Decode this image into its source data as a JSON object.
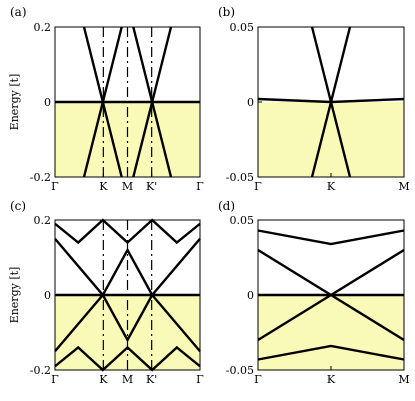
{
  "chart_data": [
    {
      "type": "line",
      "panel_label": "(a)",
      "ylabel": "Energy [t]",
      "ylim": [
        -0.2,
        0.2
      ],
      "xticks": [
        "Γ",
        "K",
        "M",
        "K'",
        "Γ"
      ],
      "yticks": [
        "0.2",
        "0",
        "-0.2"
      ],
      "series": [
        {
          "values": [
            [
              0,
              0.0
            ],
            [
              0.33,
              0.0
            ],
            [
              0.5,
              0.0
            ],
            [
              0.67,
              0.0
            ],
            [
              1,
              0.0
            ]
          ]
        },
        {
          "values": [
            [
              0.2,
              0.2
            ],
            [
              0.33,
              0.0
            ],
            [
              0.46,
              0.2
            ]
          ]
        },
        {
          "values": [
            [
              0.2,
              -0.2
            ],
            [
              0.33,
              0.0
            ],
            [
              0.46,
              -0.2
            ]
          ]
        },
        {
          "values": [
            [
              0.54,
              0.2
            ],
            [
              0.67,
              0.0
            ],
            [
              0.8,
              0.2
            ]
          ]
        },
        {
          "values": [
            [
              0.54,
              -0.2
            ],
            [
              0.67,
              0.0
            ],
            [
              0.8,
              -0.2
            ]
          ]
        }
      ],
      "fill": {
        "from": -0.2,
        "to": 0.0,
        "color": "#fafab8"
      },
      "dashed_lines_at": [
        "K",
        "M",
        "K'"
      ]
    },
    {
      "type": "line",
      "panel_label": "(b)",
      "ylim": [
        -0.05,
        0.05
      ],
      "xticks": [
        "Γ",
        "K",
        "M"
      ],
      "yticks": [
        "0.05",
        "0",
        "-0.05"
      ],
      "series": [
        {
          "values": [
            [
              0,
              0.002
            ],
            [
              0.5,
              0.0
            ],
            [
              1,
              0.002
            ]
          ]
        },
        {
          "values": [
            [
              0.37,
              0.05
            ],
            [
              0.5,
              0.0
            ],
            [
              0.63,
              -0.05
            ]
          ]
        },
        {
          "values": [
            [
              0.37,
              -0.05
            ],
            [
              0.5,
              0.0
            ],
            [
              0.63,
              0.05
            ]
          ]
        }
      ],
      "fill": {
        "from": -0.05,
        "to": 0.0,
        "color": "#fafab8"
      }
    },
    {
      "type": "line",
      "panel_label": "(c)",
      "ylabel": "Energy [t]",
      "ylim": [
        -0.2,
        0.2
      ],
      "xticks": [
        "Γ",
        "K",
        "M",
        "K'",
        "Γ"
      ],
      "yticks": [
        "0.2",
        "0",
        "-0.2"
      ],
      "series": [
        {
          "values": [
            [
              0,
              0.0
            ],
            [
              0.5,
              0.0
            ],
            [
              1,
              0.0
            ]
          ]
        },
        {
          "values": [
            [
              0,
              0.15
            ],
            [
              0.33,
              0.0
            ],
            [
              0.5,
              0.12
            ],
            [
              0.67,
              0.0
            ],
            [
              1,
              0.15
            ]
          ]
        },
        {
          "values": [
            [
              0,
              -0.15
            ],
            [
              0.33,
              0.0
            ],
            [
              0.5,
              -0.12
            ],
            [
              0.67,
              0.0
            ],
            [
              1,
              -0.15
            ]
          ]
        },
        {
          "values": [
            [
              0,
              0.19
            ],
            [
              0.16,
              0.14
            ],
            [
              0.33,
              0.2
            ],
            [
              0.5,
              0.14
            ],
            [
              0.67,
              0.2
            ],
            [
              0.84,
              0.14
            ],
            [
              1,
              0.19
            ]
          ]
        },
        {
          "values": [
            [
              0,
              -0.19
            ],
            [
              0.16,
              -0.14
            ],
            [
              0.33,
              -0.2
            ],
            [
              0.5,
              -0.14
            ],
            [
              0.67,
              -0.2
            ],
            [
              0.84,
              -0.14
            ],
            [
              1,
              -0.19
            ]
          ]
        }
      ],
      "fill": {
        "from": -0.2,
        "to": 0.0,
        "color": "#fafab8"
      },
      "dashed_lines_at": [
        "K",
        "M",
        "K'"
      ]
    },
    {
      "type": "line",
      "panel_label": "(d)",
      "ylim": [
        -0.05,
        0.05
      ],
      "xticks": [
        "Γ",
        "K",
        "M"
      ],
      "yticks": [
        "0.05",
        "0",
        "-0.05"
      ],
      "series": [
        {
          "values": [
            [
              0,
              0.043
            ],
            [
              0.5,
              0.034
            ],
            [
              1,
              0.043
            ]
          ]
        },
        {
          "values": [
            [
              0,
              -0.043
            ],
            [
              0.5,
              -0.034
            ],
            [
              1,
              -0.043
            ]
          ]
        },
        {
          "values": [
            [
              0,
              0.0
            ],
            [
              0.5,
              0.0
            ],
            [
              1,
              0.0
            ]
          ]
        },
        {
          "values": [
            [
              0,
              0.03
            ],
            [
              0.5,
              0.0
            ],
            [
              1,
              -0.03
            ]
          ]
        },
        {
          "values": [
            [
              0,
              -0.03
            ],
            [
              0.5,
              0.0
            ],
            [
              1,
              0.03
            ]
          ]
        }
      ],
      "fill": {
        "from": -0.05,
        "to": 0.0,
        "color": "#fafab8"
      }
    }
  ]
}
